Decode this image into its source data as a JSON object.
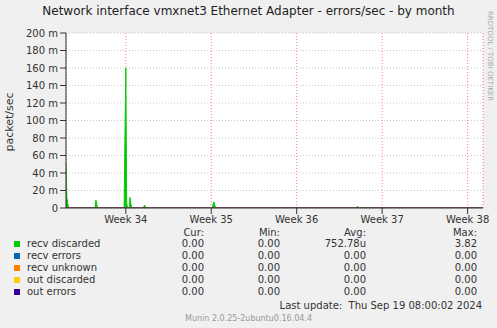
{
  "chart_data": {
    "type": "line",
    "title": "Network interface vmxnet3 Ethernet Adapter - errors/sec - by month",
    "y_label": "packet/sec",
    "x": [
      33.3,
      33.31,
      33.33,
      33.64,
      33.65,
      33.66,
      33.67,
      33.98,
      33.99,
      34.0,
      34.01,
      34.02,
      34.04,
      34.05,
      34.06,
      34.07,
      34.2,
      34.22,
      34.24,
      35.01,
      35.03,
      35.05,
      36.69,
      36.71,
      36.73,
      38.18
    ],
    "xlim": [
      33.3,
      38.18
    ],
    "xticks": [
      {
        "value": 34,
        "label": "Week 34"
      },
      {
        "value": 35,
        "label": "Week 35"
      },
      {
        "value": 36,
        "label": "Week 36"
      },
      {
        "value": 37,
        "label": "Week 37"
      },
      {
        "value": 38,
        "label": "Week 38"
      }
    ],
    "ylim": [
      0,
      0.2
    ],
    "yticks": [
      0,
      {
        "value": 0.02,
        "label": "20 m"
      },
      {
        "value": 0.04,
        "label": "40 m"
      },
      {
        "value": 0.06,
        "label": "60 m"
      },
      {
        "value": 0.08,
        "label": "80 m"
      },
      {
        "value": 0.1,
        "label": "100 m"
      },
      {
        "value": 0.12,
        "label": "120 m"
      },
      {
        "value": 0.14,
        "label": "140 m"
      },
      {
        "value": 0.16,
        "label": "160 m"
      },
      {
        "value": 0.18,
        "label": "180 m"
      },
      {
        "value": 0.2,
        "label": "200 m"
      }
    ],
    "grid": true,
    "stat_columns": [
      "Cur:",
      "Min:",
      "Avg:",
      "Max:"
    ],
    "series": [
      {
        "name": "recv discarded",
        "color": "#00cc00",
        "type": "area",
        "values": [
          0.052,
          0.012,
          0,
          0,
          0.009,
          0.004,
          0,
          0,
          0.08,
          0.16,
          0.006,
          0,
          0,
          0.012,
          0.004,
          0,
          0,
          0.003,
          0,
          0,
          0.007,
          0,
          0,
          0.002,
          0,
          0
        ],
        "stats": [
          "0.00",
          "0.00",
          "752.78u",
          "3.82"
        ]
      },
      {
        "name": "recv errors",
        "color": "#0066b3",
        "type": "line",
        "values": [
          0,
          0,
          0,
          0,
          0,
          0,
          0,
          0,
          0,
          0,
          0,
          0,
          0,
          0,
          0,
          0,
          0,
          0,
          0,
          0,
          0,
          0,
          0,
          0,
          0,
          0
        ],
        "stats": [
          "0.00",
          "0.00",
          "0.00",
          "0.00"
        ]
      },
      {
        "name": "recv unknown",
        "color": "#ff8000",
        "type": "line",
        "values": [
          0,
          0,
          0,
          0,
          0,
          0,
          0,
          0,
          0,
          0,
          0,
          0,
          0,
          0,
          0,
          0,
          0,
          0,
          0,
          0,
          0,
          0,
          0,
          0,
          0,
          0
        ],
        "stats": [
          "0.00",
          "0.00",
          "0.00",
          "0.00"
        ]
      },
      {
        "name": "out discarded",
        "color": "#ffcc00",
        "type": "line",
        "values": [
          0,
          0,
          0,
          0,
          0,
          0,
          0,
          0,
          0,
          0,
          0,
          0,
          0,
          0,
          0,
          0,
          0,
          0,
          0,
          0,
          0,
          0,
          0,
          0,
          0,
          0
        ],
        "stats": [
          "0.00",
          "0.00",
          "0.00",
          "0.00"
        ]
      },
      {
        "name": "out errors",
        "color": "#330099",
        "type": "line",
        "values": [
          0,
          0,
          0,
          0,
          0,
          0,
          0,
          0,
          0,
          0,
          0,
          0,
          0,
          0,
          0,
          0,
          0,
          0,
          0,
          0,
          0,
          0,
          0,
          0,
          0,
          0
        ],
        "stats": [
          "0.00",
          "0.00",
          "0.00",
          "0.00"
        ]
      }
    ],
    "last_update": "Last update:  Thu Sep 19 08:00:02 2024",
    "credit": "Munin 2.0.25-2ubuntu0.16.04.4",
    "watermark": "RRDTOOL / TOBI OETIKER"
  }
}
